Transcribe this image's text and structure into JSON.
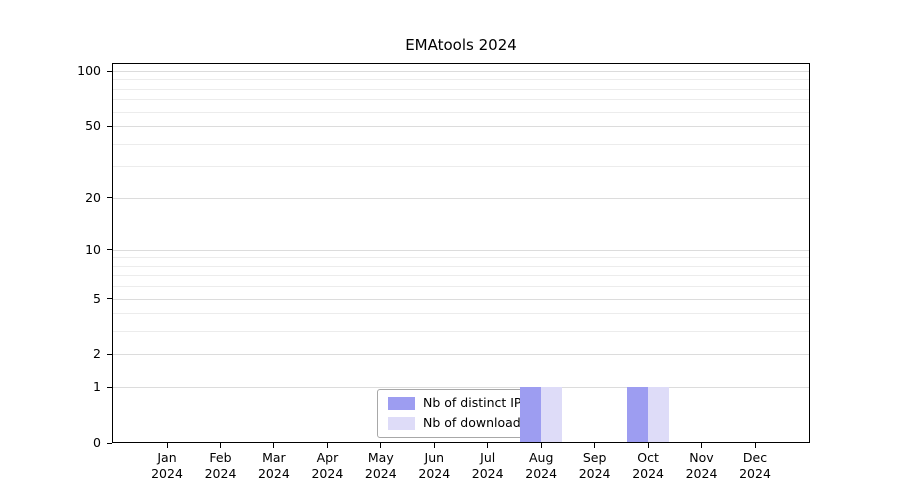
{
  "title": "EMAtools 2024",
  "legend": {
    "items": [
      {
        "label": "Nb of distinct IPs",
        "color": "#9d9df1"
      },
      {
        "label": "Nb of downloads",
        "color": "#dedcf8"
      }
    ]
  },
  "chart_data": {
    "type": "bar",
    "title": "EMAtools 2024",
    "x_year": "2024",
    "categories": [
      "Jan",
      "Feb",
      "Mar",
      "Apr",
      "May",
      "Jun",
      "Jul",
      "Aug",
      "Sep",
      "Oct",
      "Nov",
      "Dec"
    ],
    "series": [
      {
        "name": "Nb of distinct IPs",
        "color": "#9d9df1",
        "values": [
          0,
          0,
          0,
          0,
          0,
          0,
          0,
          1,
          0,
          1,
          0,
          0
        ]
      },
      {
        "name": "Nb of downloads",
        "color": "#dedcf8",
        "values": [
          0,
          0,
          0,
          0,
          0,
          0,
          0,
          1,
          0,
          1,
          0,
          0
        ]
      }
    ],
    "y_scale": "log10(1+x)",
    "ylim": [
      0,
      100
    ],
    "y_ticks": [
      0,
      1,
      2,
      5,
      10,
      20,
      50,
      100
    ],
    "gridlines": [
      1,
      2,
      3,
      4,
      5,
      6,
      7,
      8,
      9,
      10,
      20,
      30,
      40,
      50,
      60,
      70,
      80,
      90,
      100
    ],
    "grid": true,
    "legend_position": "bottom-center"
  }
}
